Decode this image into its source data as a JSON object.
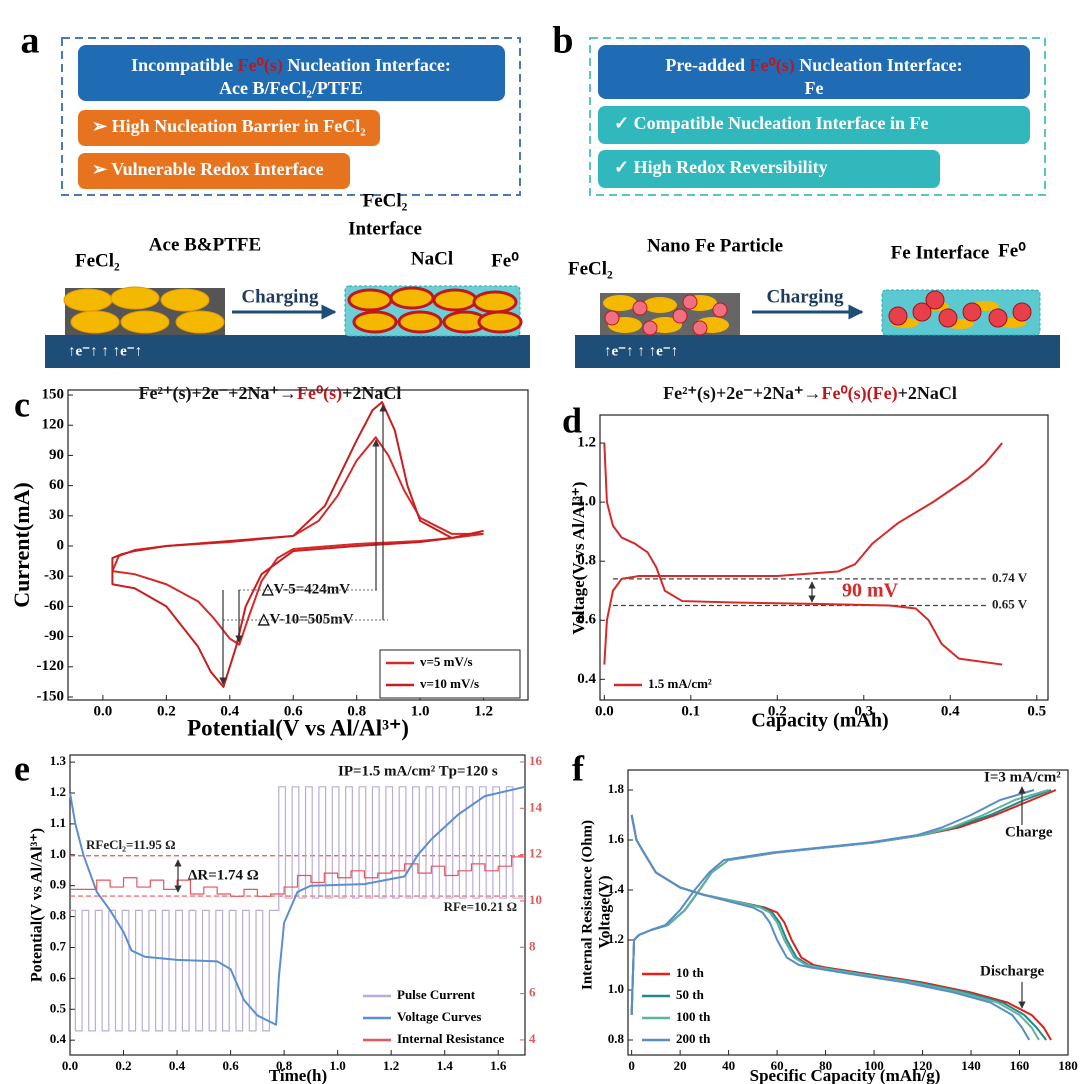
{
  "panels": [
    {
      "letter": "a",
      "title": [
        [
          "Incompatible ",
          {
            "text": "Fe⁰(s)",
            "color": "#c0161d"
          },
          " Nucleation Interface:"
        ],
        [
          "Ace B/FeCl₂/PTFE"
        ]
      ],
      "items": [
        "➢  High Nucleation Barrier in FeCl₂",
        "➢  Vulnerable Redox Interface"
      ],
      "labels": [
        "FeCl₂",
        "Ace B&PTFE",
        "FeCl₂",
        "Interface",
        "NaCl",
        "Fe⁰"
      ],
      "process": "Charging",
      "electrons": "↑e⁻↑     ↑     ↑e⁻↑",
      "equation": [
        "Fe²⁺(s)+2e⁻+2Na⁺→",
        {
          "text": "Fe⁰(s)",
          "color": "#c0161d"
        },
        "+2NaCl"
      ]
    },
    {
      "letter": "b",
      "title": [
        [
          "Pre-added ",
          {
            "text": "Fe⁰(s)",
            "color": "#c0161d"
          },
          " Nucleation Interface:"
        ],
        [
          "Fe"
        ]
      ],
      "items": [
        "✓  Compatible Nucleation Interface in Fe",
        "✓  High Redox Reversibility"
      ],
      "labels": [
        "FeCl₂",
        "Nano Fe Particle",
        "Fe Interface",
        "Fe⁰"
      ],
      "process": "Charging",
      "electrons": "↑e⁻↑     ↑     ↑e⁻↑",
      "equation": [
        "Fe²⁺(s)+2e⁻+2Na⁺→",
        {
          "text": "Fe⁰(s)(Fe)",
          "color": "#c0161d"
        },
        "+2NaCl"
      ]
    }
  ],
  "chart_data": [
    {
      "type": "line",
      "label": "c",
      "xlabel": "Potential(V vs Al/Al³⁺)",
      "ylabel": "Current(mA)",
      "xlim": [
        -0.11,
        1.34
      ],
      "ylim": [
        -153,
        155
      ],
      "xticks": [
        {
          "value": 0,
          "label": "0.0"
        },
        0.2,
        0.4,
        0.6,
        0.8,
        {
          "value": 1,
          "label": "1.0"
        },
        1.2
      ],
      "yticks": [
        -150,
        -120,
        -90,
        -60,
        -30,
        0,
        30,
        60,
        90,
        120,
        150
      ],
      "legend": "lower right",
      "legend_frame": true,
      "series": [
        {
          "name": "v=5 mV/s",
          "color": "#d42a2a",
          "x": [
            1.2,
            1.1,
            1.0,
            0.8,
            0.6,
            0.55,
            0.5,
            0.46,
            0.43,
            0.4,
            0.35,
            0.3,
            0.2,
            0.1,
            0.03,
            0.05,
            0.1,
            0.2,
            0.4,
            0.6,
            0.68,
            0.74,
            0.8,
            0.86,
            0.9,
            0.95,
            1.0,
            1.1,
            1.2
          ],
          "values": [
            12,
            8,
            5,
            2,
            -3,
            -12,
            -35,
            -70,
            -98,
            -92,
            -72,
            -55,
            -38,
            -28,
            -25,
            -10,
            -4,
            0,
            4,
            10,
            25,
            50,
            85,
            108,
            90,
            55,
            28,
            12,
            12
          ]
        },
        {
          "name": "v=10 mV/s",
          "color": "#c81e1e",
          "x": [
            1.2,
            1.1,
            1.0,
            0.8,
            0.6,
            0.5,
            0.45,
            0.42,
            0.38,
            0.34,
            0.3,
            0.2,
            0.1,
            0.03,
            0.03,
            0.06,
            0.1,
            0.2,
            0.4,
            0.6,
            0.7,
            0.8,
            0.85,
            0.88,
            0.92,
            0.96,
            1.0,
            1.1,
            1.2
          ],
          "values": [
            15,
            8,
            4,
            0,
            -5,
            -28,
            -60,
            -100,
            -140,
            -125,
            -100,
            -60,
            -42,
            -38,
            -12,
            -8,
            -5,
            0,
            5,
            10,
            40,
            105,
            135,
            143,
            115,
            60,
            25,
            8,
            15
          ]
        }
      ],
      "annotations": [
        "△V-5=424mV",
        "△V-10=505mV"
      ]
    },
    {
      "type": "line",
      "label": "d",
      "xlabel": "Capacity (mAh)",
      "ylabel": "Voltage(V vs Al/Al³⁺)",
      "xlim": [
        -0.005,
        0.513
      ],
      "ylim": [
        0.33,
        1.295
      ],
      "xticks": [
        {
          "value": 0,
          "label": "0.0"
        },
        0.1,
        0.2,
        0.3,
        0.4,
        0.5
      ],
      "yticks": [
        0.4,
        0.6,
        0.8,
        {
          "value": 1,
          "label": "1.0"
        },
        1.2
      ],
      "legend": "lower left",
      "legend_frame": false,
      "series": [
        {
          "name": "1.5 mA/cm²",
          "color": "#d42a2a",
          "x": [
            0,
            0.003,
            0.01,
            0.02,
            0.035,
            0.05,
            0.06,
            0.07,
            0.09,
            0.15,
            0.25,
            0.33,
            0.36,
            0.375,
            0.39,
            0.41,
            0.46,
            null,
            0,
            0.003,
            0.01,
            0.02,
            0.04,
            0.1,
            0.2,
            0.27,
            0.29,
            0.31,
            0.34,
            0.38,
            0.42,
            0.44,
            0.46
          ],
          "values": [
            1.2,
            1.0,
            0.92,
            0.88,
            0.86,
            0.83,
            0.78,
            0.7,
            0.665,
            0.66,
            0.655,
            0.65,
            0.64,
            0.6,
            0.52,
            0.47,
            0.45,
            null,
            0.45,
            0.6,
            0.7,
            0.74,
            0.75,
            0.75,
            0.75,
            0.765,
            0.79,
            0.86,
            0.93,
            1.0,
            1.08,
            1.13,
            1.2
          ]
        }
      ],
      "hlines": [
        {
          "value": 0.74,
          "label": "0.74 V"
        },
        {
          "value": 0.65,
          "label": "0.65 V"
        }
      ],
      "hline_color": "#444444",
      "annotations": [
        {
          "text": "90 mV",
          "color": "#d42a2a"
        }
      ]
    },
    {
      "type": "line",
      "label": "e",
      "xlabel": "Time(h)",
      "ylabel": "Potential(V vs Al/Al³⁺)",
      "y2label": "Internal Resistance (Ohm)",
      "xlim": [
        0,
        1.7
      ],
      "ylim": [
        0.352,
        1.323
      ],
      "y2lim": [
        3.35,
        16.3
      ],
      "y2color": "#e05a5a",
      "xticks": [
        {
          "value": 0,
          "label": "0.0"
        },
        0.2,
        0.4,
        0.6,
        0.8,
        {
          "value": 1,
          "label": "1.0"
        },
        1.2,
        1.4,
        1.6
      ],
      "yticks": [
        0.4,
        0.5,
        0.6,
        0.7,
        0.8,
        0.9,
        {
          "value": 1,
          "label": "1.0"
        },
        1.1,
        1.2,
        1.3
      ],
      "y2ticks": [
        4,
        6,
        8,
        10,
        12,
        14,
        16
      ],
      "legend": "lower right",
      "legend_frame": false,
      "series": [
        {
          "name": "Pulse Current",
          "color": "#b9add8",
          "step": true,
          "x": [
            0,
            0.02,
            0.045,
            0.07,
            0.095,
            0.12,
            0.145,
            0.17,
            0.195,
            0.22,
            0.245,
            0.27,
            0.295,
            0.32,
            0.345,
            0.37,
            0.395,
            0.42,
            0.445,
            0.47,
            0.495,
            0.52,
            0.545,
            0.57,
            0.595,
            0.62,
            0.645,
            0.67,
            0.695,
            0.72,
            0.745,
            0.78,
            0.805,
            0.83,
            0.855,
            0.88,
            0.905,
            0.93,
            0.955,
            0.98,
            1.005,
            1.03,
            1.055,
            1.08,
            1.105,
            1.13,
            1.155,
            1.18,
            1.205,
            1.23,
            1.255,
            1.28,
            1.305,
            1.33,
            1.355,
            1.38,
            1.405,
            1.43,
            1.455,
            1.48,
            1.505,
            1.53,
            1.555,
            1.58,
            1.605,
            1.63,
            1.655
          ],
          "values": [
            0.82,
            0.43,
            0.82,
            0.43,
            0.82,
            0.43,
            0.82,
            0.43,
            0.82,
            0.43,
            0.82,
            0.43,
            0.82,
            0.43,
            0.82,
            0.43,
            0.82,
            0.43,
            0.82,
            0.43,
            0.82,
            0.43,
            0.82,
            0.43,
            0.82,
            0.43,
            0.82,
            0.43,
            0.82,
            0.43,
            0.82,
            1.22,
            0.86,
            1.22,
            0.86,
            1.22,
            0.86,
            1.22,
            0.86,
            1.22,
            0.86,
            1.22,
            0.86,
            1.22,
            0.86,
            1.22,
            0.86,
            1.22,
            0.86,
            1.22,
            0.86,
            1.22,
            0.86,
            1.22,
            0.86,
            1.22,
            0.86,
            1.22,
            0.86,
            1.22,
            0.86,
            1.22,
            0.86,
            1.22,
            0.86,
            1.22,
            0.86
          ]
        },
        {
          "name": "Voltage Curves",
          "color": "#5b8fd0",
          "x": [
            0,
            0.02,
            0.05,
            0.1,
            0.15,
            0.2,
            0.23,
            0.28,
            0.4,
            0.55,
            0.6,
            0.65,
            0.7,
            0.77,
            0.78,
            0.8,
            0.85,
            0.9,
            1.1,
            1.25,
            1.3,
            1.35,
            1.45,
            1.55,
            1.7
          ],
          "values": [
            1.2,
            1.1,
            1.0,
            0.88,
            0.82,
            0.75,
            0.69,
            0.67,
            0.66,
            0.655,
            0.63,
            0.53,
            0.48,
            0.45,
            0.6,
            0.78,
            0.88,
            0.9,
            0.905,
            0.93,
            1.0,
            1.05,
            1.13,
            1.19,
            1.22
          ]
        },
        {
          "name": "Internal Resistance",
          "color": "#e8545a",
          "axis": "y2",
          "step": true,
          "x": [
            0,
            0.05,
            0.1,
            0.15,
            0.2,
            0.25,
            0.3,
            0.35,
            0.4,
            0.45,
            0.5,
            0.55,
            0.6,
            0.65,
            0.7,
            0.75,
            0.8,
            0.85,
            0.9,
            0.95,
            1.0,
            1.05,
            1.1,
            1.15,
            1.2,
            1.25,
            1.3,
            1.35,
            1.4,
            1.45,
            1.5,
            1.55,
            1.6,
            1.65
          ],
          "values": [
            10.5,
            10.5,
            10.9,
            10.6,
            11.0,
            10.6,
            10.9,
            10.5,
            10.9,
            10.3,
            10.6,
            10.3,
            10.2,
            10.5,
            10.2,
            10.3,
            10.6,
            11.1,
            10.8,
            11.2,
            11.0,
            11.3,
            11.0,
            11.2,
            11.3,
            11.6,
            11.2,
            11.5,
            11.1,
            11.3,
            11.6,
            11.3,
            11.5,
            11.9
          ]
        }
      ],
      "hlines": [
        {
          "value": 11.95,
          "label": "RFeCl₂=11.95 Ω",
          "axis": "y2"
        },
        {
          "value": 10.21,
          "label": "RFe=10.21 Ω",
          "axis": "y2"
        }
      ],
      "hline_color": "#e8545a",
      "annotations": [
        "IP=1.5 mA/cm²  Tp=120 s",
        "ΔR=1.74 Ω"
      ]
    },
    {
      "type": "line",
      "label": "f",
      "xlabel": "Specific Capacity (mAh/g)",
      "ylabel": "Voltage(V)",
      "xlim": [
        -1.5,
        180
      ],
      "ylim": [
        0.74,
        1.88
      ],
      "xticks": [
        0,
        20,
        40,
        60,
        80,
        100,
        120,
        140,
        160,
        180
      ],
      "yticks": [
        0.8,
        {
          "value": 1,
          "label": "1.0"
        },
        1.2,
        1.4,
        1.6,
        1.8
      ],
      "legend": "lower left",
      "legend_frame": false,
      "series": [
        {
          "name": "10 th",
          "color": "#e0201b",
          "x": [
            0,
            2,
            5,
            10,
            20,
            30,
            40,
            50,
            55,
            60,
            63,
            66,
            70,
            75,
            80,
            100,
            120,
            140,
            155,
            165,
            170,
            173,
            null,
            0,
            1,
            3,
            8,
            15,
            22,
            28,
            33,
            40,
            60,
            80,
            100,
            120,
            135,
            150,
            165,
            175
          ],
          "values": [
            1.7,
            1.6,
            1.55,
            1.47,
            1.41,
            1.38,
            1.36,
            1.34,
            1.33,
            1.31,
            1.27,
            1.2,
            1.13,
            1.1,
            1.09,
            1.06,
            1.03,
            0.99,
            0.95,
            0.9,
            0.85,
            0.8,
            null,
            0.9,
            1.2,
            1.22,
            1.24,
            1.26,
            1.32,
            1.4,
            1.47,
            1.52,
            1.55,
            1.57,
            1.59,
            1.62,
            1.65,
            1.7,
            1.76,
            1.8
          ]
        },
        {
          "name": "50 th",
          "color": "#1f8a8a",
          "x": [
            0,
            2,
            5,
            10,
            20,
            30,
            40,
            50,
            54,
            58,
            61,
            64,
            68,
            73,
            78,
            98,
            118,
            138,
            153,
            162,
            167,
            171,
            null,
            0,
            1,
            3,
            8,
            15,
            22,
            28,
            33,
            40,
            60,
            80,
            100,
            120,
            133,
            148,
            162,
            173
          ],
          "values": [
            1.7,
            1.6,
            1.55,
            1.47,
            1.41,
            1.38,
            1.36,
            1.34,
            1.33,
            1.31,
            1.27,
            1.2,
            1.13,
            1.1,
            1.09,
            1.06,
            1.03,
            0.99,
            0.95,
            0.9,
            0.85,
            0.8,
            null,
            0.9,
            1.2,
            1.22,
            1.24,
            1.26,
            1.32,
            1.4,
            1.47,
            1.52,
            1.55,
            1.57,
            1.59,
            1.62,
            1.65,
            1.7,
            1.76,
            1.8
          ]
        },
        {
          "name": "100 th",
          "color": "#5fb39a",
          "x": [
            0,
            2,
            5,
            10,
            20,
            30,
            40,
            49,
            53,
            57,
            60,
            63,
            67,
            72,
            77,
            96,
            116,
            136,
            151,
            160,
            165,
            168,
            null,
            0,
            1,
            3,
            8,
            15,
            22,
            28,
            33,
            40,
            60,
            80,
            100,
            120,
            132,
            145,
            158,
            172
          ],
          "values": [
            1.7,
            1.6,
            1.55,
            1.47,
            1.41,
            1.38,
            1.36,
            1.34,
            1.33,
            1.31,
            1.27,
            1.2,
            1.13,
            1.1,
            1.09,
            1.06,
            1.03,
            0.99,
            0.95,
            0.9,
            0.85,
            0.8,
            null,
            0.9,
            1.2,
            1.22,
            1.24,
            1.26,
            1.32,
            1.4,
            1.47,
            1.52,
            1.55,
            1.57,
            1.59,
            1.62,
            1.65,
            1.7,
            1.76,
            1.8
          ]
        },
        {
          "name": "200 th",
          "color": "#5a8cc8",
          "x": [
            0,
            2,
            5,
            10,
            20,
            30,
            38,
            46,
            50,
            54,
            57,
            60,
            64,
            69,
            74,
            93,
            113,
            133,
            148,
            157,
            161,
            164,
            null,
            0,
            1,
            3,
            8,
            14,
            20,
            26,
            32,
            38,
            58,
            78,
            98,
            118,
            128,
            140,
            152,
            166
          ],
          "values": [
            1.7,
            1.6,
            1.55,
            1.47,
            1.41,
            1.38,
            1.36,
            1.34,
            1.33,
            1.31,
            1.27,
            1.2,
            1.13,
            1.1,
            1.09,
            1.06,
            1.03,
            0.99,
            0.95,
            0.9,
            0.85,
            0.8,
            null,
            0.9,
            1.2,
            1.22,
            1.24,
            1.26,
            1.32,
            1.4,
            1.47,
            1.52,
            1.55,
            1.57,
            1.59,
            1.62,
            1.65,
            1.7,
            1.76,
            1.8
          ]
        }
      ],
      "annotations": [
        "I=3 mA/cm²",
        "Charge",
        "Discharge"
      ]
    }
  ]
}
